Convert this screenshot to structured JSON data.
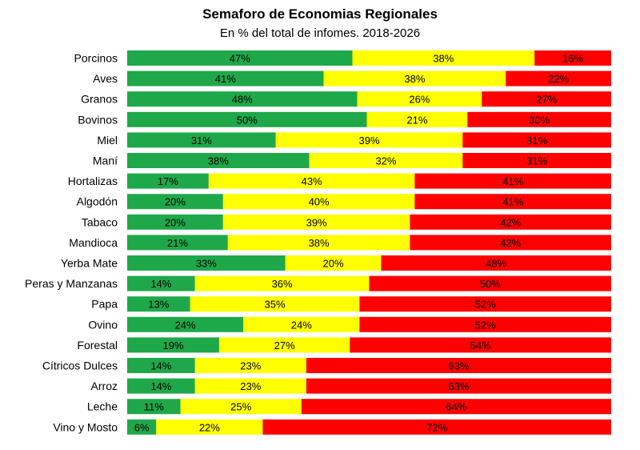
{
  "chart_data": {
    "type": "bar",
    "orientation": "horizontal",
    "stacked": true,
    "percent_stacked": true,
    "title": "Semaforo de Economias Regionales",
    "subtitle": "En % del total de infomes. 2018-2026",
    "xlim": [
      0,
      100
    ],
    "grid": false,
    "legend": "none",
    "categories": [
      "Porcinos",
      "Aves",
      "Granos",
      "Bovinos",
      "Miel",
      "Maní",
      "Hortalizas",
      "Algodón",
      "Tabaco",
      "Mandioca",
      "Yerba Mate",
      "Peras y Manzanas",
      "Papa",
      "Ovino",
      "Forestal",
      "Cítricos Dulces",
      "Arroz",
      "Leche",
      "Vino y Mosto"
    ],
    "series": [
      {
        "color": "#1fa84a",
        "values": [
          47,
          41,
          48,
          50,
          31,
          38,
          17,
          20,
          20,
          21,
          33,
          14,
          13,
          24,
          19,
          14,
          14,
          11,
          6
        ]
      },
      {
        "color": "#ffff00",
        "values": [
          38,
          38,
          26,
          21,
          39,
          32,
          43,
          40,
          39,
          38,
          20,
          36,
          35,
          24,
          27,
          23,
          23,
          25,
          22
        ]
      },
      {
        "color": "#ff0000",
        "values": [
          16,
          22,
          27,
          30,
          31,
          31,
          41,
          41,
          42,
          42,
          48,
          50,
          52,
          52,
          54,
          63,
          63,
          64,
          72
        ]
      }
    ],
    "value_suffix": "%"
  }
}
